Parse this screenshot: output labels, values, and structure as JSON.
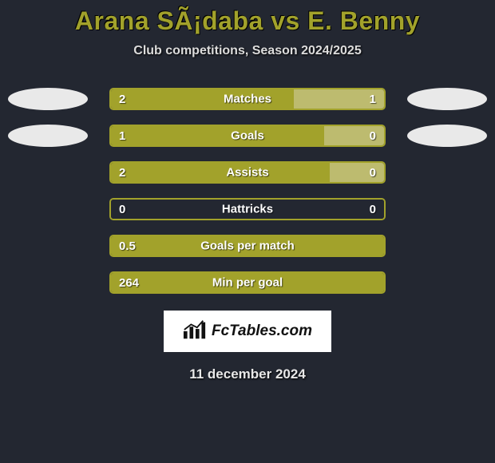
{
  "title": "Arana SÃ¡daba vs E. Benny",
  "subtitle": "Club competitions, Season 2024/2025",
  "date": "11 december 2024",
  "colors": {
    "olive": "#a2a22b",
    "olive_light": "#bdbb6f",
    "blob": "#e9e9e9",
    "background": "#232731"
  },
  "logo_text": "FcTables.com",
  "stats": [
    {
      "label": "Matches",
      "left_val": "2",
      "right_val": "1",
      "left_pct": 67,
      "right_pct": 33,
      "left_color": "#a2a22b",
      "right_color": "#bdbb6f",
      "border_color": "#a2a22b",
      "show_blobs": true
    },
    {
      "label": "Goals",
      "left_val": "1",
      "right_val": "0",
      "left_pct": 78,
      "right_pct": 22,
      "left_color": "#a2a22b",
      "right_color": "#bdbb6f",
      "border_color": "#a2a22b",
      "show_blobs": true
    },
    {
      "label": "Assists",
      "left_val": "2",
      "right_val": "0",
      "left_pct": 80,
      "right_pct": 20,
      "left_color": "#a2a22b",
      "right_color": "#bdbb6f",
      "border_color": "#a2a22b",
      "show_blobs": false
    },
    {
      "label": "Hattricks",
      "left_val": "0",
      "right_val": "0",
      "left_pct": 100,
      "right_pct": 0,
      "left_color": "#232731",
      "right_color": "#232731",
      "border_color": "#a2a22b",
      "show_blobs": false
    },
    {
      "label": "Goals per match",
      "left_val": "0.5",
      "right_val": "",
      "left_pct": 100,
      "right_pct": 0,
      "left_color": "#a2a22b",
      "right_color": "#a2a22b",
      "border_color": "#a2a22b",
      "show_blobs": false
    },
    {
      "label": "Min per goal",
      "left_val": "264",
      "right_val": "",
      "left_pct": 100,
      "right_pct": 0,
      "left_color": "#a2a22b",
      "right_color": "#a2a22b",
      "border_color": "#a2a22b",
      "show_blobs": false
    }
  ]
}
